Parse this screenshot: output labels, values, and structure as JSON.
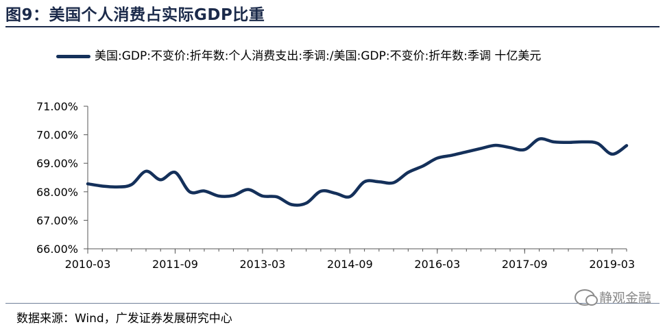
{
  "figure": {
    "title": "图9：美国个人消费占实际GDP比重",
    "source": "数据来源：Wind，广发证券发展研究中心",
    "watermark": "静观金融",
    "watermark_icon": "wechat-icon",
    "accent": "#14305a"
  },
  "chart_data": {
    "type": "line",
    "title": "",
    "xlabel": "",
    "ylabel": "",
    "ylim": [
      66.0,
      71.0
    ],
    "yticks": [
      "66.00%",
      "67.00%",
      "68.00%",
      "69.00%",
      "70.00%",
      "71.00%"
    ],
    "ytick_values": [
      66,
      67,
      68,
      69,
      70,
      71
    ],
    "xticks": [
      "2010-03",
      "2011-09",
      "2013-03",
      "2014-09",
      "2016-03",
      "2017-09",
      "2019-03"
    ],
    "grid": false,
    "legend_position": "top",
    "series": [
      {
        "name": "美国:GDP:不变价:折年数:个人消费支出:季调:/美国:GDP:不变价:折年数:季调 十亿美元",
        "color": "#14305a",
        "x": [
          "2010-03",
          "2010-06",
          "2010-09",
          "2010-12",
          "2011-03",
          "2011-06",
          "2011-09",
          "2011-12",
          "2012-03",
          "2012-06",
          "2012-09",
          "2012-12",
          "2013-03",
          "2013-06",
          "2013-09",
          "2013-12",
          "2014-03",
          "2014-06",
          "2014-09",
          "2014-12",
          "2015-03",
          "2015-06",
          "2015-09",
          "2015-12",
          "2016-03",
          "2016-06",
          "2016-09",
          "2016-12",
          "2017-03",
          "2017-06",
          "2017-09",
          "2017-12",
          "2018-03",
          "2018-06",
          "2018-09",
          "2018-12",
          "2019-03",
          "2019-06"
        ],
        "values": [
          68.28,
          68.2,
          68.17,
          68.25,
          68.72,
          68.42,
          68.68,
          68.0,
          68.03,
          67.85,
          67.87,
          68.08,
          67.85,
          67.82,
          67.55,
          67.6,
          68.02,
          67.95,
          67.83,
          68.35,
          68.35,
          68.32,
          68.68,
          68.9,
          69.18,
          69.28,
          69.4,
          69.52,
          69.63,
          69.55,
          69.48,
          69.85,
          69.75,
          69.73,
          69.75,
          69.7,
          69.32,
          69.62
        ]
      }
    ]
  }
}
